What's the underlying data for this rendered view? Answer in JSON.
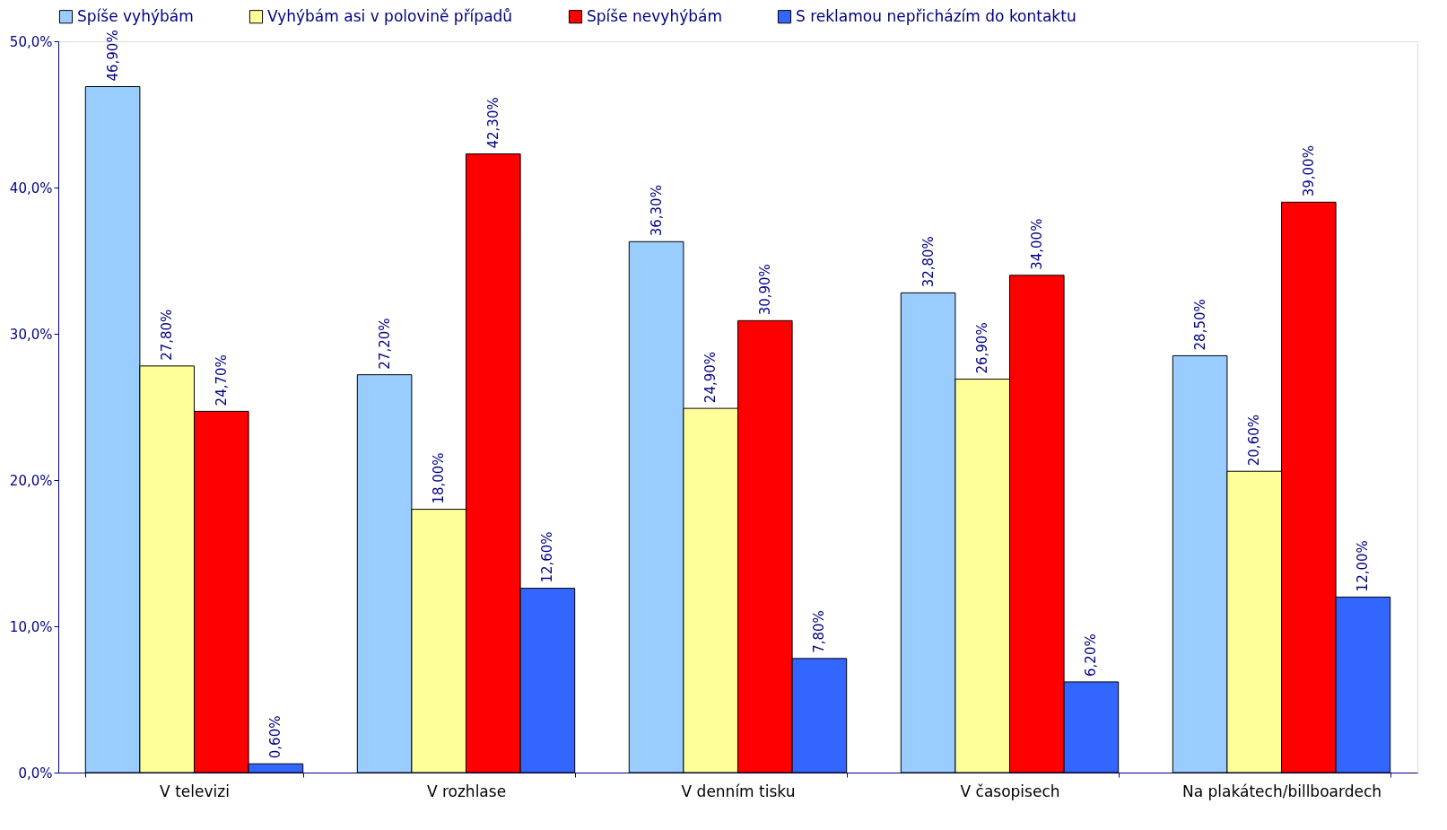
{
  "chart_data": {
    "type": "bar",
    "categories": [
      "V televizi",
      "V rozhlase",
      "V denním tisku",
      "V časopisech",
      "Na plakátech/billboardech"
    ],
    "series": [
      {
        "name": "Spíše vyhýbám",
        "color": "#99ccff",
        "values": [
          46.9,
          27.2,
          36.3,
          32.8,
          28.5
        ],
        "value_labels": [
          "46,90%",
          "27,20%",
          "36,30%",
          "32,80%",
          "28,50%"
        ]
      },
      {
        "name": "Vyhýbám asi v polovině případů",
        "color": "#ffff99",
        "values": [
          27.8,
          18.0,
          24.9,
          26.9,
          20.6
        ],
        "value_labels": [
          "27,80%",
          "18,00%",
          "24,90%",
          "26,90%",
          "20,60%"
        ]
      },
      {
        "name": "Spíše nevyhýbám",
        "color": "#ff0000",
        "values": [
          24.7,
          42.3,
          30.9,
          34.0,
          39.0
        ],
        "value_labels": [
          "24,70%",
          "42,30%",
          "30,90%",
          "34,00%",
          "39,00%"
        ]
      },
      {
        "name": "S reklamou nepřicházím do kontaktu",
        "color": "#3366ff",
        "values": [
          0.6,
          12.6,
          7.8,
          6.2,
          12.0
        ],
        "value_labels": [
          "0,60%",
          "12,60%",
          "7,80%",
          "6,20%",
          "12,00%"
        ]
      }
    ],
    "ylim": [
      0,
      50
    ],
    "yticks": [
      {
        "value": 0,
        "label": "0,0%"
      },
      {
        "value": 10,
        "label": "10,0%"
      },
      {
        "value": 20,
        "label": "20,0%"
      },
      {
        "value": 30,
        "label": "30,0%"
      },
      {
        "value": 40,
        "label": "40,0%"
      },
      {
        "value": 50,
        "label": "50,0%"
      }
    ],
    "grid": false,
    "legend": "top"
  }
}
